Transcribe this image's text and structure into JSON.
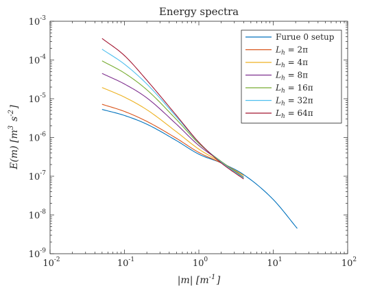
{
  "chart_data": {
    "type": "line",
    "title": "Energy spectra",
    "xlabel": "|m| [m^{-1}]",
    "ylabel": "E(m) [m^3 s^{-2}]",
    "xscale": "log",
    "yscale": "log",
    "xlim": [
      0.01,
      100
    ],
    "ylim": [
      1e-09,
      0.001
    ],
    "x_ticks": [
      {
        "value": 0.01,
        "base": "10",
        "exp": "-2"
      },
      {
        "value": 0.1,
        "base": "10",
        "exp": "-1"
      },
      {
        "value": 1,
        "base": "10",
        "exp": "0"
      },
      {
        "value": 10,
        "base": "10",
        "exp": "1"
      },
      {
        "value": 100,
        "base": "10",
        "exp": "2"
      }
    ],
    "y_ticks": [
      {
        "value": 1e-09,
        "base": "10",
        "exp": "-9"
      },
      {
        "value": 1e-08,
        "base": "10",
        "exp": "-8"
      },
      {
        "value": 1e-07,
        "base": "10",
        "exp": "-7"
      },
      {
        "value": 1e-06,
        "base": "10",
        "exp": "-6"
      },
      {
        "value": 1e-05,
        "base": "10",
        "exp": "-5"
      },
      {
        "value": 0.0001,
        "base": "10",
        "exp": "-4"
      },
      {
        "value": 0.001,
        "base": "10",
        "exp": "-3"
      }
    ],
    "legend_position": "top-right",
    "grid": false,
    "series": [
      {
        "name": "Furue 0 setup",
        "color": "#0072BD",
        "x": [
          0.05,
          0.1,
          0.2,
          0.5,
          1,
          2,
          4,
          10,
          21
        ],
        "y": [
          5.3e-06,
          3.7e-06,
          2.2e-06,
          8.3e-07,
          3.7e-07,
          2.2e-07,
          1.1e-07,
          2.5e-08,
          4.5e-09
        ]
      },
      {
        "name": "L_h = 2π",
        "color": "#D95319",
        "x": [
          0.05,
          0.1,
          0.2,
          0.5,
          1,
          2,
          4
        ],
        "y": [
          7.2e-06,
          4.7e-06,
          2.6e-06,
          9.5e-07,
          4.1e-07,
          2.2e-07,
          1.05e-07
        ]
      },
      {
        "name": "L_h = 4π",
        "color": "#EDB120",
        "x": [
          0.05,
          0.1,
          0.2,
          0.5,
          1,
          2,
          4
        ],
        "y": [
          1.95e-05,
          1.1e-05,
          5.2e-06,
          1.4e-06,
          5e-07,
          2.3e-07,
          1.05e-07
        ]
      },
      {
        "name": "L_h = 8π",
        "color": "#7E2F8E",
        "x": [
          0.05,
          0.1,
          0.2,
          0.5,
          1,
          2,
          4
        ],
        "y": [
          4.5e-05,
          2.4e-05,
          1.05e-05,
          2.2e-06,
          6.2e-07,
          2.4e-07,
          9.5e-08
        ]
      },
      {
        "name": "L_h = 16π",
        "color": "#77AC30",
        "x": [
          0.05,
          0.1,
          0.2,
          0.5,
          1,
          2,
          4
        ],
        "y": [
          9.5e-05,
          4.6e-05,
          1.7e-05,
          2.9e-06,
          7e-07,
          2.4e-07,
          9.3e-08
        ]
      },
      {
        "name": "L_h = 32π",
        "color": "#4DBEEE",
        "x": [
          0.05,
          0.1,
          0.2,
          0.5,
          1,
          2,
          4
        ],
        "y": [
          0.00019,
          7.8e-05,
          2.4e-05,
          3.4e-06,
          7.4e-07,
          2.3e-07,
          9e-08
        ]
      },
      {
        "name": "L_h = 64π",
        "color": "#A2142F",
        "x": [
          0.05,
          0.1,
          0.2,
          0.5,
          1,
          2,
          4
        ],
        "y": [
          0.00036,
          0.00013,
          3e-05,
          3.7e-06,
          7.5e-07,
          2.2e-07,
          8.5e-08
        ]
      }
    ]
  }
}
